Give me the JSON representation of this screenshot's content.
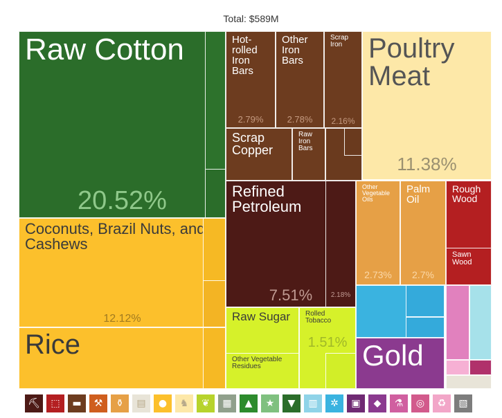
{
  "total_label": "Total: $589M",
  "chart_data": {
    "type": "treemap",
    "total": "$589M",
    "items": [
      {
        "name": "Raw Cotton",
        "share": 20.52,
        "share_label": "20.52%",
        "color": "#2b6d2a"
      },
      {
        "name": "Coconuts, Brazil Nuts, and Cashews",
        "share": 12.12,
        "share_label": "12.12%",
        "color": "#fcc02c"
      },
      {
        "name": "Rice",
        "share": null,
        "share_label": "",
        "color": "#fcc02c"
      },
      {
        "name": "Hot-rolled Iron Bars",
        "share": 2.79,
        "share_label": "2.79%",
        "color": "#6d3c1f"
      },
      {
        "name": "Other Iron Bars",
        "share": 2.78,
        "share_label": "2.78%",
        "color": "#6d3c1f"
      },
      {
        "name": "Scrap Iron",
        "share": 2.16,
        "share_label": "2.16%",
        "color": "#6d3c1f"
      },
      {
        "name": "Scrap Copper",
        "share": null,
        "share_label": "",
        "color": "#6d3c1f"
      },
      {
        "name": "Raw Iron Bars",
        "share": null,
        "share_label": "",
        "color": "#6d3c1f"
      },
      {
        "name": "Poultry Meat",
        "share": 11.38,
        "share_label": "11.38%",
        "color": "#fde8a8"
      },
      {
        "name": "Refined Petroleum",
        "share": 7.51,
        "share_label": "7.51%",
        "color": "#4d1a16"
      },
      {
        "name": "",
        "share": 2.18,
        "share_label": "2.18%",
        "color": "#4d1a16"
      },
      {
        "name": "Other Vegetable Oils",
        "share": 2.73,
        "share_label": "2.73%",
        "color": "#e6a046"
      },
      {
        "name": "Palm Oil",
        "share": 2.7,
        "share_label": "2.7%",
        "color": "#e6a046"
      },
      {
        "name": "Rough Wood",
        "share": null,
        "share_label": "",
        "color": "#b41f21"
      },
      {
        "name": "Sawn Wood",
        "share": null,
        "share_label": "",
        "color": "#b41f21"
      },
      {
        "name": "Raw Sugar",
        "share": null,
        "share_label": "",
        "color": "#d6f12a"
      },
      {
        "name": "Rolled Tobacco",
        "share": 1.51,
        "share_label": "1.51%",
        "color": "#d6f12a"
      },
      {
        "name": "Other Vegetable Residues",
        "share": null,
        "share_label": "",
        "color": "#d6f12a"
      },
      {
        "name": "Gold",
        "share": null,
        "share_label": "",
        "color": "#8b3a8f"
      }
    ]
  },
  "legend_icons": [
    {
      "name": "mineral-icon",
      "color": "#4d1a16"
    },
    {
      "name": "chemical-icon",
      "color": "#b41f21"
    },
    {
      "name": "metal-icon",
      "color": "#6d3c1f"
    },
    {
      "name": "tools-icon",
      "color": "#cf5e1e"
    },
    {
      "name": "bottle-icon",
      "color": "#e6a046"
    },
    {
      "name": "paper-icon",
      "color": "#e8e4d8"
    },
    {
      "name": "fruit-icon",
      "color": "#fcc02c"
    },
    {
      "name": "animal-icon",
      "color": "#fde8a8"
    },
    {
      "name": "vegetable-icon",
      "color": "#b7d32c"
    },
    {
      "name": "machine-icon",
      "color": "#90a08c"
    },
    {
      "name": "footwear-icon",
      "color": "#2d8b2d"
    },
    {
      "name": "star-icon",
      "color": "#7fc07f"
    },
    {
      "name": "shirt-icon",
      "color": "#2b6d2a"
    },
    {
      "name": "road-icon",
      "color": "#8fd3e8"
    },
    {
      "name": "gears-icon",
      "color": "#3ab3e0"
    },
    {
      "name": "frame-icon",
      "color": "#6f2a73"
    },
    {
      "name": "gem-icon",
      "color": "#8b3a8f"
    },
    {
      "name": "flask-icon",
      "color": "#d05fa0"
    },
    {
      "name": "instrument-icon",
      "color": "#d25a8c"
    },
    {
      "name": "recycle-icon",
      "color": "#f2a6c8"
    },
    {
      "name": "box-icon",
      "color": "#7d7d7d"
    }
  ]
}
